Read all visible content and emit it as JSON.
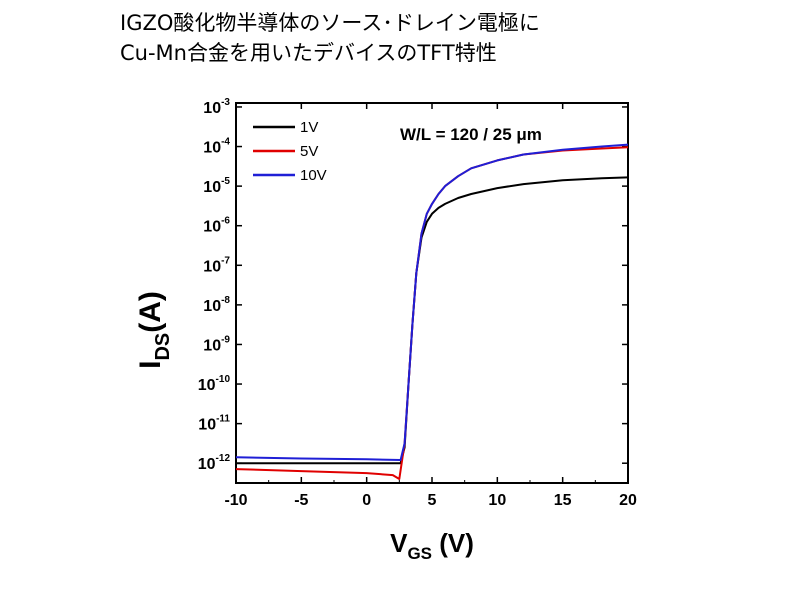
{
  "caption": {
    "line1": "IGZO酸化物半導体のソース･ドレイン電極に",
    "line2": "Cu-Mn合金を用いたデバイスのTFT特性"
  },
  "chart_data": {
    "type": "line",
    "title": "",
    "xlabel_main": "V",
    "xlabel_sub": "GS",
    "xlabel_unit": " (V)",
    "ylabel_main": "I",
    "ylabel_sub": "DS",
    "ylabel_unit": "(A)",
    "xlim": [
      -10,
      20
    ],
    "ylim_exp": [
      -12.5,
      -2.9
    ],
    "y_scale": "log",
    "x_ticks": [
      -10,
      -5,
      0,
      5,
      10,
      15,
      20
    ],
    "y_tick_exponents": [
      -3,
      -4,
      -5,
      -6,
      -7,
      -8,
      -9,
      -10,
      -11,
      -12
    ],
    "annotation": "W/L = 120 / 25 μm",
    "legend_position": "top-left",
    "series": [
      {
        "name": "1V",
        "color": "#000000",
        "x": [
          -10,
          -5,
          0,
          2.6,
          2.9,
          3.2,
          3.5,
          3.8,
          4.2,
          4.6,
          5.0,
          5.5,
          6.0,
          7.0,
          8.0,
          10.0,
          12.0,
          15.0,
          18.0,
          20.0
        ],
        "log_y": [
          -12.0,
          -12.0,
          -12.0,
          -12.0,
          -11.6,
          -10.0,
          -8.5,
          -7.2,
          -6.3,
          -5.9,
          -5.7,
          -5.55,
          -5.45,
          -5.3,
          -5.2,
          -5.05,
          -4.95,
          -4.85,
          -4.8,
          -4.78
        ]
      },
      {
        "name": "5V",
        "color": "#e00000",
        "x": [
          -10,
          -5,
          0,
          2.0,
          2.5,
          2.9,
          3.2,
          3.5,
          3.8,
          4.2,
          4.6,
          5.0,
          5.5,
          6.0,
          7.0,
          8.0,
          10.0,
          12.0,
          15.0,
          18.0,
          20.0
        ],
        "log_y": [
          -12.15,
          -12.2,
          -12.25,
          -12.3,
          -12.4,
          -11.5,
          -10.0,
          -8.5,
          -7.2,
          -6.2,
          -5.7,
          -5.45,
          -5.2,
          -5.0,
          -4.75,
          -4.55,
          -4.35,
          -4.2,
          -4.1,
          -4.05,
          -4.02
        ]
      },
      {
        "name": "10V",
        "color": "#1f1fd6",
        "x": [
          -10,
          -5,
          0,
          2.6,
          2.9,
          3.2,
          3.5,
          3.8,
          4.2,
          4.6,
          5.0,
          5.5,
          6.0,
          7.0,
          8.0,
          10.0,
          12.0,
          15.0,
          18.0,
          20.0
        ],
        "log_y": [
          -11.85,
          -11.88,
          -11.9,
          -11.92,
          -11.5,
          -10.0,
          -8.5,
          -7.2,
          -6.2,
          -5.7,
          -5.45,
          -5.2,
          -5.0,
          -4.75,
          -4.55,
          -4.35,
          -4.2,
          -4.08,
          -4.0,
          -3.95
        ]
      }
    ]
  }
}
